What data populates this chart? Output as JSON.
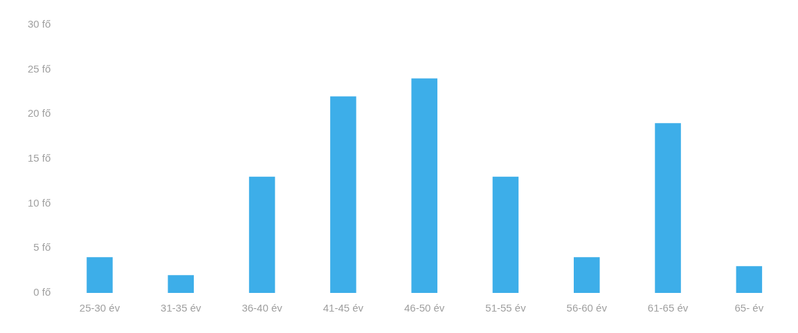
{
  "chart_data": {
    "type": "bar",
    "categories": [
      "25-30 év",
      "31-35 év",
      "36-40 év",
      "41-45 év",
      "46-50 év",
      "51-55 év",
      "56-60 év",
      "61-65 év",
      "65- év"
    ],
    "values": [
      4,
      2,
      13,
      22,
      24,
      13,
      4,
      19,
      3
    ],
    "color": "#3daee9",
    "ylim": [
      0,
      30
    ],
    "yticks": [
      {
        "value": 0,
        "label": "0 fő"
      },
      {
        "value": 5,
        "label": "5 fő"
      },
      {
        "value": 10,
        "label": "10 fő"
      },
      {
        "value": 15,
        "label": "15 fő"
      },
      {
        "value": 20,
        "label": "20 fő"
      },
      {
        "value": 25,
        "label": "25 fő"
      },
      {
        "value": 30,
        "label": "30 fő"
      }
    ],
    "grid": false,
    "legend": false
  }
}
